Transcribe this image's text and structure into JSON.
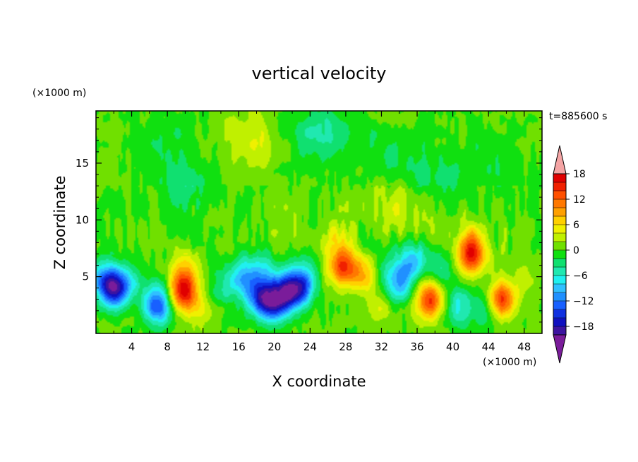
{
  "chart_data": {
    "type": "heatmap",
    "title": "vertical velocity",
    "xlabel": "X coordinate",
    "ylabel": "Z coordinate",
    "x_unit": "(×1000 m)",
    "y_unit": "(×1000 m)",
    "time_label": "t=885600 s",
    "xlim": [
      0,
      50
    ],
    "ylim": [
      0,
      19.6
    ],
    "x_ticks": [
      4,
      8,
      12,
      16,
      20,
      24,
      28,
      32,
      36,
      40,
      44,
      48
    ],
    "x_tick_labels": [
      "4",
      "8",
      "12",
      "16",
      "20",
      "24",
      "28",
      "32",
      "36",
      "40",
      "44",
      "48"
    ],
    "y_ticks": [
      5,
      10,
      15
    ],
    "y_tick_labels": [
      "5",
      "10",
      "15"
    ],
    "colorbar": {
      "min": -21,
      "max": 21,
      "step": 2,
      "tick_values": [
        18,
        12,
        6,
        0,
        -6,
        -12,
        -18
      ],
      "tick_labels": [
        "18",
        "12",
        "6",
        "0",
        "−6",
        "−12",
        "−18"
      ],
      "colors": [
        "#7a1c9a",
        "#3d14a0",
        "#1010c0",
        "#1030e0",
        "#1860ff",
        "#2090ff",
        "#30c0ff",
        "#20f0f0",
        "#20e8b0",
        "#10e070",
        "#10e010",
        "#70e000",
        "#c0f000",
        "#f0f000",
        "#ffd000",
        "#ffa000",
        "#ff7800",
        "#ff5000",
        "#f02000",
        "#e00000",
        "#f4a4a4"
      ]
    },
    "features": [
      {
        "x": 2.2,
        "z": 3.8,
        "value": -16
      },
      {
        "x": 1.0,
        "z": 4.8,
        "value": -10
      },
      {
        "x": 4.2,
        "z": 4.6,
        "value": -6
      },
      {
        "x": 6.5,
        "z": 3.5,
        "value": -6
      },
      {
        "x": 7.0,
        "z": 2.2,
        "value": -11
      },
      {
        "x": 5.2,
        "z": 4.3,
        "value": 4
      },
      {
        "x": 9.8,
        "z": 3.4,
        "value": 14
      },
      {
        "x": 10.0,
        "z": 5.2,
        "value": 8
      },
      {
        "x": 12.0,
        "z": 2.0,
        "value": 4
      },
      {
        "x": 14.2,
        "z": 4.0,
        "value": -4
      },
      {
        "x": 16.5,
        "z": 5.0,
        "value": -9
      },
      {
        "x": 18.5,
        "z": 3.2,
        "value": -14
      },
      {
        "x": 20.0,
        "z": 2.5,
        "value": -12
      },
      {
        "x": 21.3,
        "z": 3.6,
        "value": -13
      },
      {
        "x": 22.8,
        "z": 4.0,
        "value": -13
      },
      {
        "x": 19.0,
        "z": 5.5,
        "value": -6
      },
      {
        "x": 23.5,
        "z": 5.5,
        "value": -4
      },
      {
        "x": 27.6,
        "z": 5.8,
        "value": 13
      },
      {
        "x": 27.2,
        "z": 8.0,
        "value": 5
      },
      {
        "x": 30.0,
        "z": 5.2,
        "value": 8
      },
      {
        "x": 31.8,
        "z": 2.2,
        "value": 3
      },
      {
        "x": 34.0,
        "z": 4.5,
        "value": -10
      },
      {
        "x": 35.5,
        "z": 6.5,
        "value": -9
      },
      {
        "x": 32.5,
        "z": 6.0,
        "value": -3
      },
      {
        "x": 37.5,
        "z": 3.0,
        "value": 14
      },
      {
        "x": 39.0,
        "z": 5.5,
        "value": -4
      },
      {
        "x": 40.5,
        "z": 2.3,
        "value": -7
      },
      {
        "x": 42.0,
        "z": 6.8,
        "value": 14
      },
      {
        "x": 42.2,
        "z": 8.5,
        "value": 6
      },
      {
        "x": 45.5,
        "z": 3.0,
        "value": 14
      },
      {
        "x": 43.5,
        "z": 2.2,
        "value": -5
      },
      {
        "x": 48.5,
        "z": 5.0,
        "value": 2
      },
      {
        "x": 25.0,
        "z": 17.5,
        "value": -5
      },
      {
        "x": 17.5,
        "z": 17.0,
        "value": 4
      },
      {
        "x": 34.0,
        "z": 11.0,
        "value": 3
      },
      {
        "x": 10.0,
        "z": 13.0,
        "value": -3
      },
      {
        "x": 33.0,
        "z": 16.0,
        "value": -2
      },
      {
        "x": 38.0,
        "z": 13.5,
        "value": -3
      },
      {
        "x": 44.0,
        "z": 15.0,
        "value": -2
      },
      {
        "x": 8.0,
        "z": 17.0,
        "value": -2
      }
    ]
  }
}
